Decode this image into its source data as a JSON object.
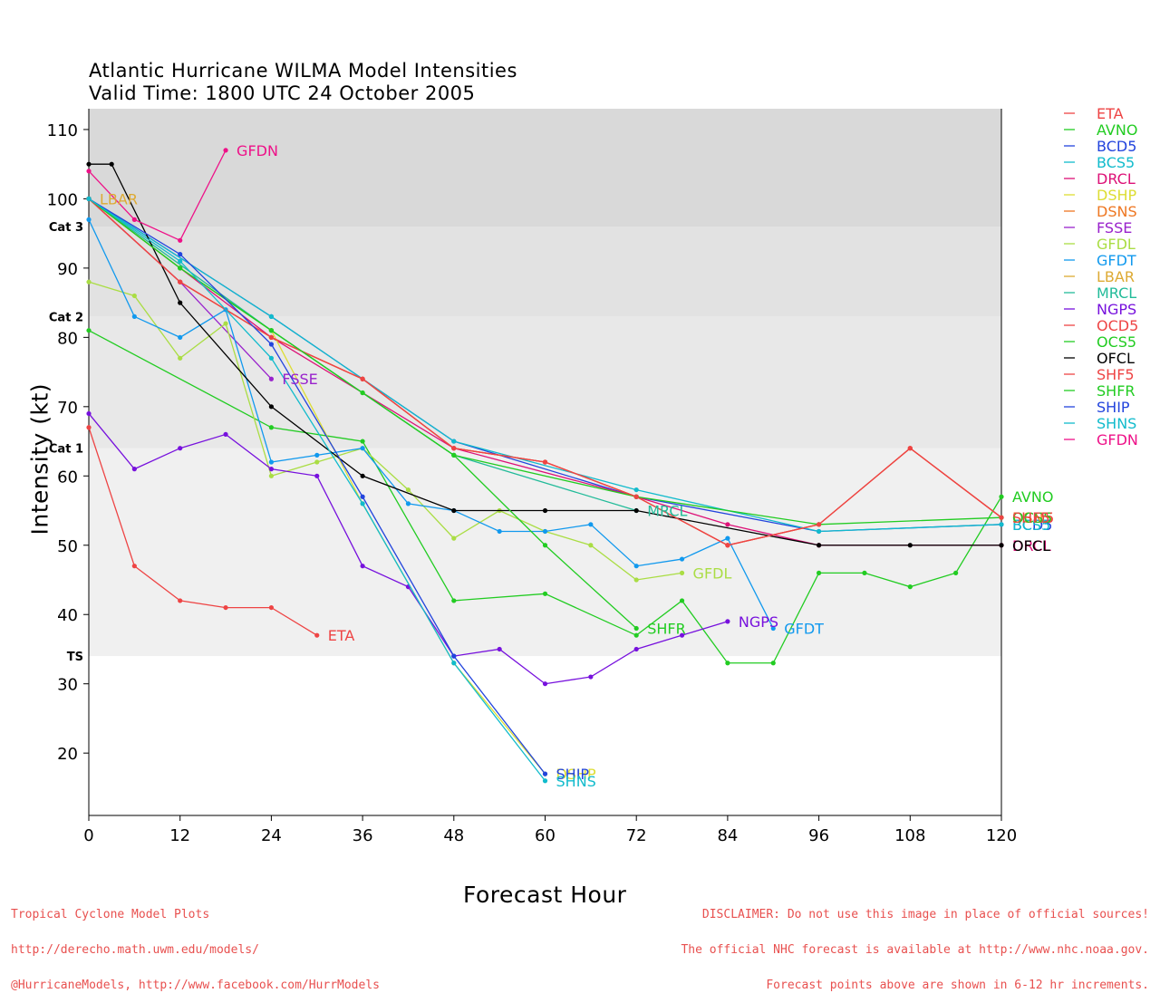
{
  "title": {
    "line1": "Atlantic Hurricane WILMA Model Intensities",
    "line2": "Valid Time: 1800 UTC 24 October 2005"
  },
  "footer": {
    "left": [
      "Tropical Cyclone Model Plots",
      "http://derecho.math.uwm.edu/models/",
      "@HurricaneModels, http://www.facebook.com/HurrModels"
    ],
    "right": [
      "DISCLAIMER: Do not use this image in place of official sources!",
      "The official NHC forecast is available at http://www.nhc.noaa.gov.",
      "Forecast points above are shown in 6-12 hr increments."
    ]
  },
  "chart_data": {
    "type": "line",
    "xlabel": "Forecast Hour",
    "ylabel": "Intensity (kt)",
    "xlim": [
      0,
      120
    ],
    "ylim": [
      11,
      113
    ],
    "xticks": [
      0,
      12,
      24,
      36,
      48,
      60,
      72,
      84,
      96,
      108,
      120
    ],
    "yticks": [
      20,
      30,
      40,
      50,
      60,
      70,
      80,
      90,
      100,
      110
    ],
    "category_bands": [
      {
        "label": "TS",
        "from": 34,
        "to": 64,
        "color": "#f0f0f0"
      },
      {
        "label": "Cat 1",
        "from": 64,
        "to": 83,
        "color": "#e8e8e8"
      },
      {
        "label": "Cat 2",
        "from": 83,
        "to": 96,
        "color": "#e2e2e2"
      },
      {
        "label": "Cat 3",
        "from": 96,
        "to": 113,
        "color": "#d9d9d9"
      }
    ],
    "legend_position": "right",
    "series": [
      {
        "name": "ETA",
        "color": "#ee4444",
        "x": [
          0,
          6,
          12,
          18,
          24,
          30
        ],
        "y": [
          67,
          47,
          42,
          41,
          41,
          37
        ],
        "end_label": "ETA"
      },
      {
        "name": "AVNO",
        "color": "#22cc22",
        "x": [
          0,
          24,
          36,
          48,
          60,
          72,
          78,
          84,
          90,
          96,
          102,
          108,
          114,
          120
        ],
        "y": [
          81,
          67,
          65,
          42,
          43,
          37,
          42,
          33,
          33,
          46,
          46,
          44,
          46,
          57
        ],
        "end_label": "AVNO"
      },
      {
        "name": "BCD5",
        "color": "#2244dd",
        "x": [
          0,
          24,
          48,
          72,
          96,
          120
        ],
        "y": [
          100,
          83,
          65,
          57,
          52,
          53
        ],
        "end_label": "BCD5"
      },
      {
        "name": "BCS5",
        "color": "#11bbcc",
        "x": [
          0,
          24,
          48,
          72,
          96,
          120
        ],
        "y": [
          100,
          83,
          65,
          58,
          52,
          53
        ],
        "end_label": "BCS5"
      },
      {
        "name": "DRCL",
        "color": "#dd1177",
        "x": [
          0,
          24,
          48,
          72,
          84,
          96,
          120
        ],
        "y": [
          100,
          80,
          64,
          57,
          53,
          50,
          50
        ],
        "end_label": "DRCL"
      },
      {
        "name": "DSHP",
        "color": "#dddd33",
        "x": [
          0,
          12,
          24,
          36,
          48,
          60
        ],
        "y": [
          100,
          90,
          81,
          56,
          33,
          17
        ],
        "end_label": "DSHP"
      },
      {
        "name": "DSNS",
        "color": "#ee7722",
        "x": [
          0,
          12,
          24,
          36,
          48,
          60,
          72,
          84,
          96,
          108,
          120
        ],
        "y": [
          100,
          88,
          80,
          74,
          64,
          62,
          57,
          50,
          53,
          64,
          54
        ],
        "end_label": "DSNS"
      },
      {
        "name": "FSSE",
        "color": "#9922cc",
        "x": [
          0,
          12,
          24
        ],
        "y": [
          100,
          88,
          74
        ],
        "end_label": "FSSE"
      },
      {
        "name": "GFDL",
        "color": "#aadd44",
        "x": [
          0,
          6,
          12,
          18,
          24,
          30,
          36,
          42,
          48,
          54,
          60,
          66,
          72,
          78
        ],
        "y": [
          88,
          86,
          77,
          82,
          60,
          62,
          64,
          58,
          51,
          55,
          52,
          50,
          45,
          46
        ],
        "end_label": "GFDL"
      },
      {
        "name": "GFDT",
        "color": "#1199ee",
        "x": [
          0,
          6,
          12,
          18,
          24,
          30,
          36,
          42,
          48,
          54,
          60,
          66,
          72,
          78,
          84,
          90
        ],
        "y": [
          97,
          83,
          80,
          84,
          62,
          63,
          64,
          56,
          55,
          52,
          52,
          53,
          47,
          48,
          51,
          38
        ],
        "end_label": "GFDT"
      },
      {
        "name": "LBAR",
        "color": "#ddaa33",
        "x": [
          0
        ],
        "y": [
          100
        ],
        "end_label": "LBAR"
      },
      {
        "name": "MRCL",
        "color": "#22bb99",
        "x": [
          0,
          24,
          48,
          72
        ],
        "y": [
          100,
          81,
          63,
          55
        ],
        "end_label": "MRCL"
      },
      {
        "name": "NGPS",
        "color": "#7711dd",
        "x": [
          0,
          6,
          12,
          18,
          24,
          30,
          36,
          42,
          48,
          54,
          60,
          66,
          72,
          78,
          84
        ],
        "y": [
          69,
          61,
          64,
          66,
          61,
          60,
          47,
          44,
          34,
          35,
          30,
          31,
          35,
          37,
          39
        ],
        "end_label": "NGPS"
      },
      {
        "name": "OCD5",
        "color": "#ee4444",
        "x": [
          0,
          12,
          24,
          36,
          48,
          60,
          72,
          84,
          96,
          108,
          120
        ],
        "y": [
          100,
          88,
          80,
          74,
          64,
          62,
          57,
          50,
          53,
          64,
          54
        ],
        "end_label": "OCD5"
      },
      {
        "name": "OCS5",
        "color": "#22cc22",
        "x": [
          0,
          12,
          24,
          36,
          48,
          72,
          96,
          120
        ],
        "y": [
          100,
          90,
          81,
          72,
          63,
          57,
          53,
          54
        ],
        "end_label": "OCS5"
      },
      {
        "name": "OFCL",
        "color": "#000000",
        "x": [
          0,
          3,
          12,
          24,
          36,
          48,
          60,
          72,
          96,
          108,
          120
        ],
        "y": [
          105,
          105,
          85,
          70,
          60,
          55,
          55,
          55,
          50,
          50,
          50
        ],
        "end_label": "OFCL"
      },
      {
        "name": "SHF5",
        "color": "#ee4444",
        "x": [
          0,
          12,
          24,
          36,
          48,
          60,
          72,
          84,
          96,
          108,
          120
        ],
        "y": [
          100,
          88,
          80,
          74,
          64,
          62,
          57,
          50,
          53,
          64,
          54
        ],
        "end_label": "SHF5"
      },
      {
        "name": "SHFR",
        "color": "#22cc22",
        "x": [
          0,
          12,
          24,
          36,
          48,
          60,
          72
        ],
        "y": [
          100,
          90,
          81,
          72,
          63,
          50,
          38
        ],
        "end_label": "SHFR"
      },
      {
        "name": "SHIP",
        "color": "#2244dd",
        "x": [
          0,
          12,
          24,
          36,
          48,
          60
        ],
        "y": [
          100,
          92,
          79,
          57,
          34,
          17
        ],
        "end_label": "SHIP"
      },
      {
        "name": "SHNS",
        "color": "#11bbcc",
        "x": [
          0,
          12,
          24,
          36,
          48,
          60
        ],
        "y": [
          100,
          91,
          77,
          56,
          33,
          16
        ],
        "end_label": "SHNS"
      },
      {
        "name": "GFDN",
        "color": "#ee1188",
        "x": [
          0,
          6,
          12,
          18
        ],
        "y": [
          104,
          97,
          94,
          107
        ],
        "end_label": "GFDN"
      }
    ]
  }
}
